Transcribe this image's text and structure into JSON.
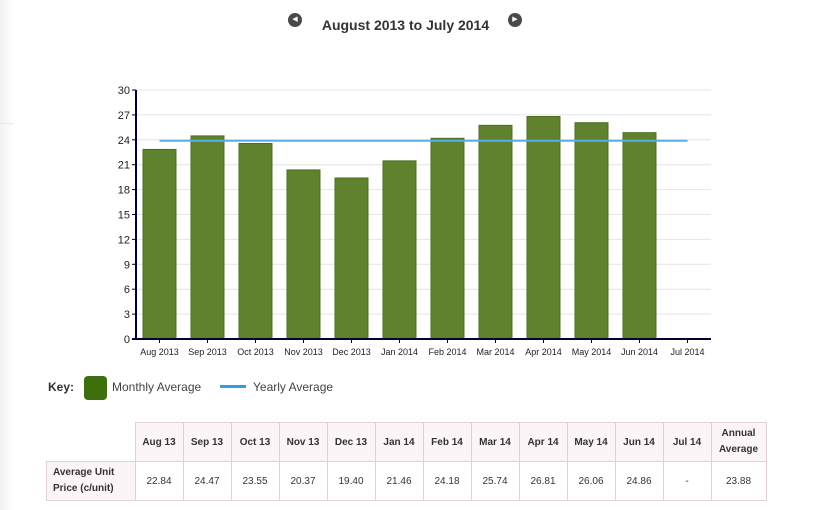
{
  "header": {
    "title": "August 2013 to July 2014",
    "prev_icon": "◀",
    "next_icon": "▶"
  },
  "key": {
    "label": "Key:",
    "monthly_label": "Monthly Average",
    "yearly_label": "Yearly Average"
  },
  "colors": {
    "bar": "#5f822f",
    "bar_edge": "#4d6e22",
    "key_swatch": "#3e6e0e",
    "average_line": "#5aaee8",
    "table_header_bg": "#fbf5f7",
    "table_border": "#e2cfd7"
  },
  "chart_data": {
    "type": "bar",
    "categories": [
      "Aug 2013",
      "Sep 2013",
      "Oct 2013",
      "Nov 2013",
      "Dec 2013",
      "Jan 2014",
      "Feb 2014",
      "Mar 2014",
      "Apr 2014",
      "May 2014",
      "Jun 2014",
      "Jul 2014"
    ],
    "values": [
      22.84,
      24.47,
      23.55,
      20.37,
      19.4,
      21.46,
      24.18,
      25.74,
      26.81,
      26.06,
      24.86,
      null
    ],
    "series": [
      {
        "name": "Monthly Average",
        "values": [
          22.84,
          24.47,
          23.55,
          20.37,
          19.4,
          21.46,
          24.18,
          25.74,
          26.81,
          26.06,
          24.86,
          null
        ]
      },
      {
        "name": "Yearly Average",
        "values": [
          23.88,
          23.88,
          23.88,
          23.88,
          23.88,
          23.88,
          23.88,
          23.88,
          23.88,
          23.88,
          23.88,
          23.88
        ]
      }
    ],
    "yticks": [
      0,
      3,
      6,
      9,
      12,
      15,
      18,
      21,
      24,
      27,
      30
    ],
    "ylim": [
      0,
      30
    ],
    "grid": true,
    "title": "August 2013 to July 2014"
  },
  "table": {
    "columns": [
      "Aug 13",
      "Sep 13",
      "Oct 13",
      "Nov 13",
      "Dec 13",
      "Jan 14",
      "Feb 14",
      "Mar 14",
      "Apr 14",
      "May 14",
      "Jun 14",
      "Jul 14"
    ],
    "annual_header_line1": "Annual",
    "annual_header_line2": "Average",
    "row_label_line1": "Average Unit",
    "row_label_line2": "Price (c/unit)",
    "cells": [
      "22.84",
      "24.47",
      "23.55",
      "20.37",
      "19.40",
      "21.46",
      "24.18",
      "25.74",
      "26.81",
      "26.06",
      "24.86",
      "-"
    ],
    "annual_value": "23.88"
  }
}
